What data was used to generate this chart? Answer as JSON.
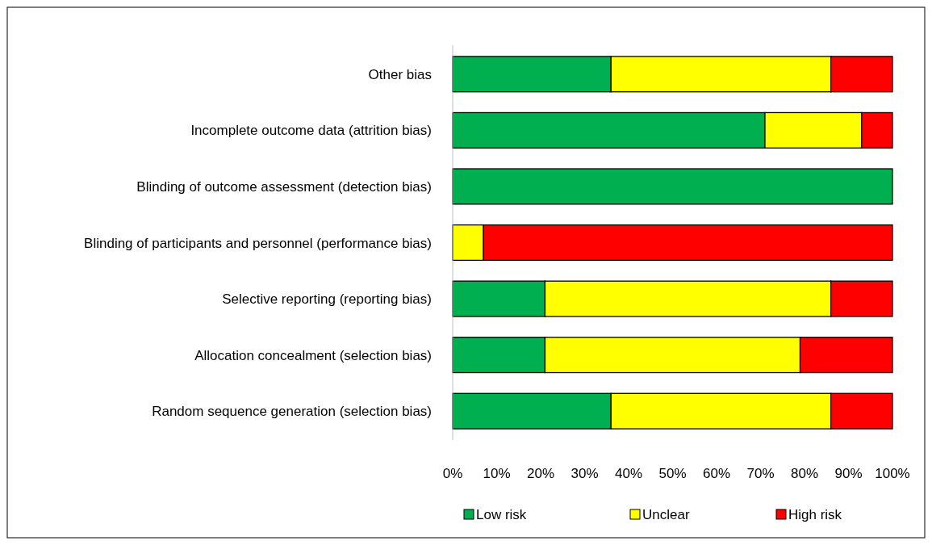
{
  "chart_data": {
    "type": "bar",
    "orientation": "horizontal",
    "stacked": true,
    "categories": [
      "Other bias",
      "Incomplete outcome data (attrition bias)",
      "Blinding of outcome assessment (detection bias)",
      "Blinding of participants and personnel (performance bias)",
      "Selective reporting (reporting bias)",
      "Allocation concealment (selection bias)",
      "Random sequence generation (selection bias)"
    ],
    "series": [
      {
        "name": "Low risk",
        "color": "#00b050",
        "values": [
          36,
          71,
          100,
          0,
          21,
          21,
          36
        ]
      },
      {
        "name": "Unclear",
        "color": "#ffff00",
        "values": [
          50,
          22,
          0,
          7,
          65,
          58,
          50
        ]
      },
      {
        "name": "High risk",
        "color": "#ff0000",
        "values": [
          14,
          7,
          0,
          93,
          14,
          21,
          14
        ]
      }
    ],
    "xlim": [
      0,
      100
    ],
    "xticks": [
      {
        "value": 0,
        "label": "0%"
      },
      {
        "value": 10,
        "label": "10%"
      },
      {
        "value": 20,
        "label": "20%"
      },
      {
        "value": 30,
        "label": "30%"
      },
      {
        "value": 40,
        "label": "40%"
      },
      {
        "value": 50,
        "label": "50%"
      },
      {
        "value": 60,
        "label": "60%"
      },
      {
        "value": 70,
        "label": "70%"
      },
      {
        "value": 80,
        "label": "80%"
      },
      {
        "value": 90,
        "label": "90%"
      },
      {
        "value": 100,
        "label": "100%"
      }
    ],
    "grid": false,
    "legend": "bottom"
  }
}
